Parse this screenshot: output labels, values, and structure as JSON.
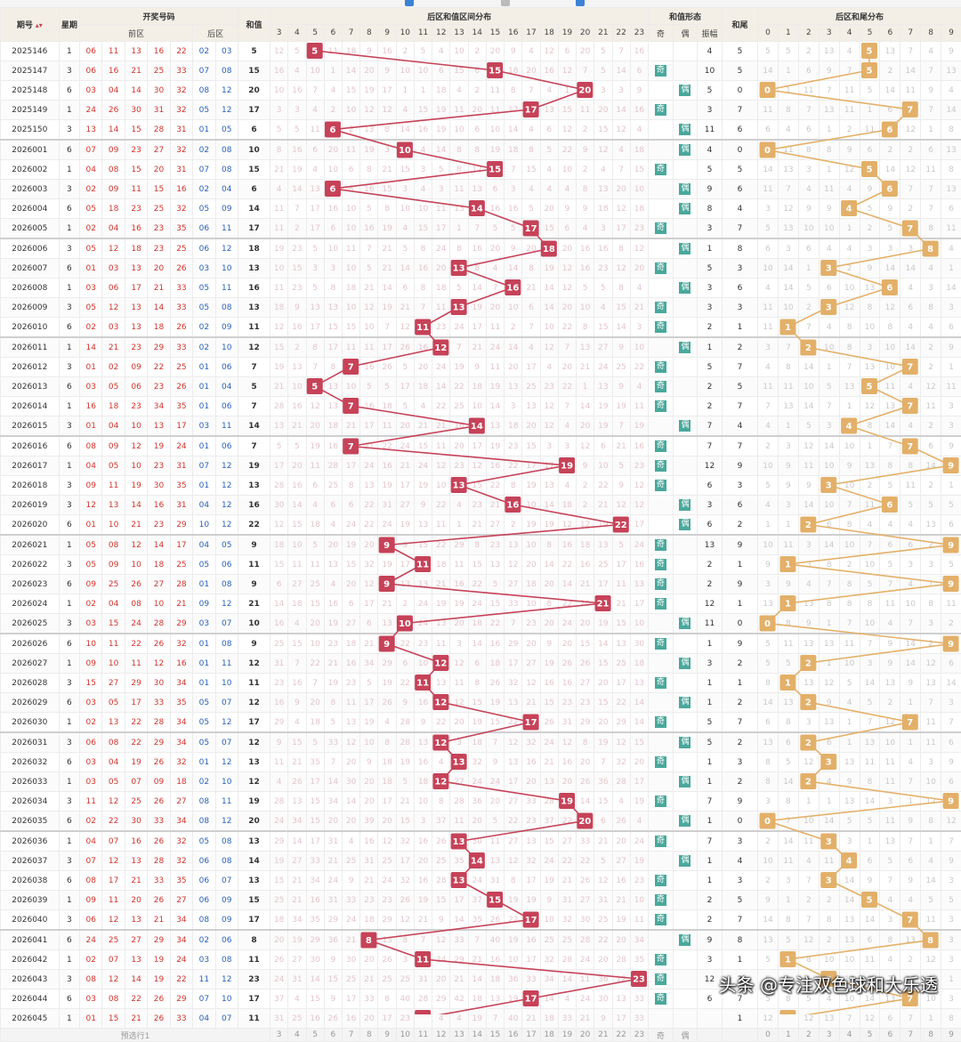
{
  "headers": {
    "issue": "期号",
    "sort_icon": "sort-arrows",
    "weekday": "星期",
    "draw": "开奖号码",
    "front": "前区",
    "back": "后区",
    "sum": "和值",
    "sum_dist": "后区和值区间分布",
    "sum_form": "和值形态",
    "odd": "奇",
    "even": "偶",
    "amp": "振幅",
    "tail": "和尾",
    "tail_dist": "后区和尾分布"
  },
  "sum_cols": [
    "3",
    "4",
    "5",
    "6",
    "7",
    "8",
    "9",
    "10",
    "11",
    "12",
    "13",
    "14",
    "15",
    "16",
    "17",
    "18",
    "19",
    "20",
    "21",
    "22",
    "23"
  ],
  "tail_cols": [
    "0",
    "1",
    "2",
    "3",
    "4",
    "5",
    "6",
    "7",
    "8",
    "9"
  ],
  "rows": [
    {
      "issue": "2025146",
      "wk": "1",
      "f": [
        "06",
        "11",
        "13",
        "16",
        "22"
      ],
      "b": [
        "02",
        "03"
      ],
      "sum": "5",
      "oe": "",
      "amp": "4",
      "tail": "5"
    },
    {
      "issue": "2025147",
      "wk": "3",
      "f": [
        "06",
        "16",
        "21",
        "25",
        "33"
      ],
      "b": [
        "07",
        "08"
      ],
      "sum": "15",
      "oe": "奇",
      "amp": "10",
      "tail": "5"
    },
    {
      "issue": "2025148",
      "wk": "6",
      "f": [
        "03",
        "04",
        "14",
        "30",
        "32"
      ],
      "b": [
        "08",
        "12"
      ],
      "sum": "20",
      "oe": "偶",
      "amp": "5",
      "tail": "0"
    },
    {
      "issue": "2025149",
      "wk": "1",
      "f": [
        "24",
        "26",
        "30",
        "31",
        "32"
      ],
      "b": [
        "05",
        "12"
      ],
      "sum": "17",
      "oe": "奇",
      "amp": "3",
      "tail": "7"
    },
    {
      "issue": "2025150",
      "wk": "3",
      "f": [
        "13",
        "14",
        "15",
        "28",
        "31"
      ],
      "b": [
        "01",
        "05"
      ],
      "sum": "6",
      "oe": "偶",
      "amp": "11",
      "tail": "6"
    },
    {
      "issue": "2026001",
      "wk": "6",
      "f": [
        "07",
        "09",
        "23",
        "27",
        "32"
      ],
      "b": [
        "02",
        "08"
      ],
      "sum": "10",
      "oe": "偶",
      "amp": "4",
      "tail": "0"
    },
    {
      "issue": "2026002",
      "wk": "1",
      "f": [
        "04",
        "08",
        "15",
        "20",
        "31"
      ],
      "b": [
        "07",
        "08"
      ],
      "sum": "15",
      "oe": "奇",
      "amp": "5",
      "tail": "5"
    },
    {
      "issue": "2026003",
      "wk": "3",
      "f": [
        "02",
        "09",
        "11",
        "15",
        "16"
      ],
      "b": [
        "02",
        "04"
      ],
      "sum": "6",
      "oe": "偶",
      "amp": "9",
      "tail": "6"
    },
    {
      "issue": "2026004",
      "wk": "6",
      "f": [
        "05",
        "18",
        "23",
        "25",
        "32"
      ],
      "b": [
        "05",
        "09"
      ],
      "sum": "14",
      "oe": "偶",
      "amp": "8",
      "tail": "4"
    },
    {
      "issue": "2026005",
      "wk": "1",
      "f": [
        "02",
        "04",
        "16",
        "23",
        "35"
      ],
      "b": [
        "06",
        "11"
      ],
      "sum": "17",
      "oe": "奇",
      "amp": "3",
      "tail": "7"
    },
    {
      "issue": "2026006",
      "wk": "3",
      "f": [
        "05",
        "12",
        "18",
        "23",
        "25"
      ],
      "b": [
        "06",
        "12"
      ],
      "sum": "18",
      "oe": "偶",
      "amp": "1",
      "tail": "8"
    },
    {
      "issue": "2026007",
      "wk": "6",
      "f": [
        "01",
        "03",
        "13",
        "20",
        "26"
      ],
      "b": [
        "03",
        "10"
      ],
      "sum": "13",
      "oe": "奇",
      "amp": "5",
      "tail": "3"
    },
    {
      "issue": "2026008",
      "wk": "1",
      "f": [
        "03",
        "06",
        "17",
        "21",
        "33"
      ],
      "b": [
        "05",
        "11"
      ],
      "sum": "16",
      "oe": "偶",
      "amp": "3",
      "tail": "6"
    },
    {
      "issue": "2026009",
      "wk": "3",
      "f": [
        "05",
        "12",
        "13",
        "14",
        "33"
      ],
      "b": [
        "05",
        "08"
      ],
      "sum": "13",
      "oe": "奇",
      "amp": "3",
      "tail": "3"
    },
    {
      "issue": "2026010",
      "wk": "6",
      "f": [
        "02",
        "03",
        "13",
        "18",
        "26"
      ],
      "b": [
        "02",
        "09"
      ],
      "sum": "11",
      "oe": "奇",
      "amp": "2",
      "tail": "1"
    },
    {
      "issue": "2026011",
      "wk": "1",
      "f": [
        "14",
        "21",
        "23",
        "29",
        "33"
      ],
      "b": [
        "02",
        "10"
      ],
      "sum": "12",
      "oe": "偶",
      "amp": "1",
      "tail": "2"
    },
    {
      "issue": "2026012",
      "wk": "3",
      "f": [
        "01",
        "02",
        "09",
        "22",
        "25"
      ],
      "b": [
        "01",
        "06"
      ],
      "sum": "7",
      "oe": "奇",
      "amp": "5",
      "tail": "7"
    },
    {
      "issue": "2026013",
      "wk": "6",
      "f": [
        "03",
        "05",
        "06",
        "23",
        "26"
      ],
      "b": [
        "01",
        "04"
      ],
      "sum": "5",
      "oe": "奇",
      "amp": "2",
      "tail": "5"
    },
    {
      "issue": "2026014",
      "wk": "1",
      "f": [
        "16",
        "18",
        "23",
        "34",
        "35"
      ],
      "b": [
        "01",
        "06"
      ],
      "sum": "7",
      "oe": "奇",
      "amp": "2",
      "tail": "7"
    },
    {
      "issue": "2026015",
      "wk": "3",
      "f": [
        "01",
        "04",
        "10",
        "13",
        "17"
      ],
      "b": [
        "03",
        "11"
      ],
      "sum": "14",
      "oe": "偶",
      "amp": "7",
      "tail": "4"
    },
    {
      "issue": "2026016",
      "wk": "6",
      "f": [
        "08",
        "09",
        "12",
        "19",
        "24"
      ],
      "b": [
        "01",
        "06"
      ],
      "sum": "7",
      "oe": "奇",
      "amp": "7",
      "tail": "7"
    },
    {
      "issue": "2026017",
      "wk": "1",
      "f": [
        "04",
        "05",
        "10",
        "23",
        "31"
      ],
      "b": [
        "07",
        "12"
      ],
      "sum": "19",
      "oe": "奇",
      "amp": "12",
      "tail": "9"
    },
    {
      "issue": "2026018",
      "wk": "3",
      "f": [
        "09",
        "11",
        "19",
        "30",
        "35"
      ],
      "b": [
        "01",
        "12"
      ],
      "sum": "13",
      "oe": "奇",
      "amp": "6",
      "tail": "3"
    },
    {
      "issue": "2026019",
      "wk": "3",
      "f": [
        "12",
        "13",
        "14",
        "16",
        "31"
      ],
      "b": [
        "04",
        "12"
      ],
      "sum": "16",
      "oe": "偶",
      "amp": "3",
      "tail": "6"
    },
    {
      "issue": "2026020",
      "wk": "6",
      "f": [
        "01",
        "10",
        "21",
        "23",
        "29"
      ],
      "b": [
        "10",
        "12"
      ],
      "sum": "22",
      "oe": "偶",
      "amp": "6",
      "tail": "2"
    },
    {
      "issue": "2026021",
      "wk": "1",
      "f": [
        "05",
        "08",
        "12",
        "14",
        "17"
      ],
      "b": [
        "04",
        "05"
      ],
      "sum": "9",
      "oe": "奇",
      "amp": "13",
      "tail": "9"
    },
    {
      "issue": "2026022",
      "wk": "3",
      "f": [
        "05",
        "09",
        "10",
        "18",
        "25"
      ],
      "b": [
        "05",
        "06"
      ],
      "sum": "11",
      "oe": "奇",
      "amp": "2",
      "tail": "1"
    },
    {
      "issue": "2026023",
      "wk": "6",
      "f": [
        "09",
        "25",
        "26",
        "27",
        "28"
      ],
      "b": [
        "01",
        "08"
      ],
      "sum": "9",
      "oe": "奇",
      "amp": "2",
      "tail": "9"
    },
    {
      "issue": "2026024",
      "wk": "1",
      "f": [
        "02",
        "04",
        "08",
        "10",
        "21"
      ],
      "b": [
        "09",
        "12"
      ],
      "sum": "21",
      "oe": "奇",
      "amp": "12",
      "tail": "1"
    },
    {
      "issue": "2026025",
      "wk": "3",
      "f": [
        "03",
        "15",
        "24",
        "28",
        "29"
      ],
      "b": [
        "03",
        "07"
      ],
      "sum": "10",
      "oe": "偶",
      "amp": "11",
      "tail": "0"
    },
    {
      "issue": "2026026",
      "wk": "6",
      "f": [
        "10",
        "11",
        "22",
        "26",
        "32"
      ],
      "b": [
        "01",
        "08"
      ],
      "sum": "9",
      "oe": "奇",
      "amp": "1",
      "tail": "9"
    },
    {
      "issue": "2026027",
      "wk": "1",
      "f": [
        "09",
        "10",
        "11",
        "12",
        "16"
      ],
      "b": [
        "01",
        "11"
      ],
      "sum": "12",
      "oe": "偶",
      "amp": "3",
      "tail": "2"
    },
    {
      "issue": "2026028",
      "wk": "3",
      "f": [
        "15",
        "27",
        "29",
        "30",
        "34"
      ],
      "b": [
        "01",
        "10"
      ],
      "sum": "11",
      "oe": "奇",
      "amp": "1",
      "tail": "1"
    },
    {
      "issue": "2026029",
      "wk": "6",
      "f": [
        "03",
        "05",
        "17",
        "33",
        "35"
      ],
      "b": [
        "05",
        "07"
      ],
      "sum": "12",
      "oe": "偶",
      "amp": "1",
      "tail": "2"
    },
    {
      "issue": "2026030",
      "wk": "1",
      "f": [
        "02",
        "13",
        "22",
        "28",
        "34"
      ],
      "b": [
        "05",
        "12"
      ],
      "sum": "17",
      "oe": "奇",
      "amp": "5",
      "tail": "7"
    },
    {
      "issue": "2026031",
      "wk": "3",
      "f": [
        "06",
        "08",
        "22",
        "29",
        "34"
      ],
      "b": [
        "05",
        "07"
      ],
      "sum": "12",
      "oe": "偶",
      "amp": "5",
      "tail": "2"
    },
    {
      "issue": "2026032",
      "wk": "6",
      "f": [
        "03",
        "04",
        "19",
        "26",
        "32"
      ],
      "b": [
        "01",
        "12"
      ],
      "sum": "13",
      "oe": "奇",
      "amp": "1",
      "tail": "3"
    },
    {
      "issue": "2026033",
      "wk": "1",
      "f": [
        "03",
        "05",
        "07",
        "09",
        "18"
      ],
      "b": [
        "02",
        "10"
      ],
      "sum": "12",
      "oe": "偶",
      "amp": "1",
      "tail": "2"
    },
    {
      "issue": "2026034",
      "wk": "3",
      "f": [
        "11",
        "12",
        "25",
        "26",
        "27"
      ],
      "b": [
        "08",
        "11"
      ],
      "sum": "19",
      "oe": "奇",
      "amp": "7",
      "tail": "9"
    },
    {
      "issue": "2026035",
      "wk": "6",
      "f": [
        "02",
        "22",
        "30",
        "33",
        "34"
      ],
      "b": [
        "08",
        "12"
      ],
      "sum": "20",
      "oe": "偶",
      "amp": "1",
      "tail": "0"
    },
    {
      "issue": "2026036",
      "wk": "1",
      "f": [
        "04",
        "07",
        "16",
        "26",
        "32"
      ],
      "b": [
        "05",
        "08"
      ],
      "sum": "13",
      "oe": "奇",
      "amp": "7",
      "tail": "3"
    },
    {
      "issue": "2026037",
      "wk": "3",
      "f": [
        "07",
        "12",
        "13",
        "28",
        "32"
      ],
      "b": [
        "06",
        "08"
      ],
      "sum": "14",
      "oe": "偶",
      "amp": "1",
      "tail": "4"
    },
    {
      "issue": "2026038",
      "wk": "6",
      "f": [
        "08",
        "17",
        "21",
        "33",
        "35"
      ],
      "b": [
        "06",
        "07"
      ],
      "sum": "13",
      "oe": "奇",
      "amp": "1",
      "tail": "3"
    },
    {
      "issue": "2026039",
      "wk": "1",
      "f": [
        "09",
        "11",
        "20",
        "26",
        "27"
      ],
      "b": [
        "06",
        "09"
      ],
      "sum": "15",
      "oe": "奇",
      "amp": "2",
      "tail": "5"
    },
    {
      "issue": "2026040",
      "wk": "3",
      "f": [
        "06",
        "12",
        "13",
        "21",
        "34"
      ],
      "b": [
        "08",
        "09"
      ],
      "sum": "17",
      "oe": "奇",
      "amp": "2",
      "tail": "7"
    },
    {
      "issue": "2026041",
      "wk": "6",
      "f": [
        "24",
        "25",
        "27",
        "29",
        "34"
      ],
      "b": [
        "02",
        "06"
      ],
      "sum": "8",
      "oe": "偶",
      "amp": "9",
      "tail": "8"
    },
    {
      "issue": "2026042",
      "wk": "1",
      "f": [
        "02",
        "07",
        "13",
        "19",
        "24"
      ],
      "b": [
        "03",
        "08"
      ],
      "sum": "11",
      "oe": "奇",
      "amp": "3",
      "tail": "1"
    },
    {
      "issue": "2026043",
      "wk": "3",
      "f": [
        "08",
        "12",
        "14",
        "19",
        "22"
      ],
      "b": [
        "11",
        "12"
      ],
      "sum": "23",
      "oe": "奇",
      "amp": "12",
      "tail": "3"
    },
    {
      "issue": "2026044",
      "wk": "6",
      "f": [
        "03",
        "08",
        "22",
        "26",
        "29"
      ],
      "b": [
        "07",
        "10"
      ],
      "sum": "17",
      "oe": "奇",
      "amp": "6",
      "tail": "7"
    },
    {
      "issue": "2026045",
      "wk": "1",
      "f": [
        "01",
        "15",
        "21",
        "26",
        "33"
      ],
      "b": [
        "04",
        "07"
      ],
      "sum": "11",
      "oe": "",
      "amp": "",
      "tail": "1"
    }
  ],
  "footer": {
    "label": "预选行1",
    "odd": "奇",
    "even": "偶"
  },
  "watermark": "头条 @专注双色球和大乐透",
  "colors": {
    "marker_red": "#c64258",
    "marker_gold": "#e3b069",
    "front_red": "#d0352f",
    "back_blue": "#2a62b8",
    "header_bg": "#f3efe6",
    "odd_even_tag": "#4aa89c"
  }
}
